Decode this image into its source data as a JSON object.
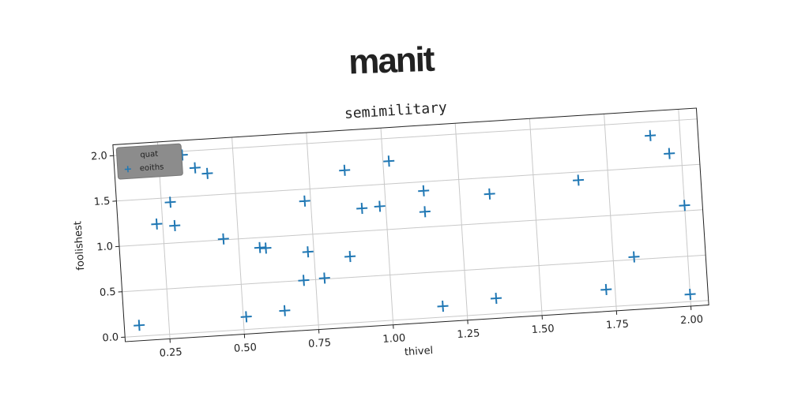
{
  "chart_data": {
    "type": "scatter",
    "title": "manit",
    "subtitle": "semimilitary",
    "x_label": "thivel",
    "y_label": "foolishest",
    "legend_title": "quat",
    "legend_loc": "upper left",
    "grid": true,
    "xlim": [
      0.1,
      2.06
    ],
    "ylim": [
      -0.05,
      2.12
    ],
    "xticks": [
      0.25,
      {
        "value": 0.5,
        "label": "0.50"
      },
      0.75,
      {
        "value": 1.0,
        "label": "1.00"
      },
      1.25,
      {
        "value": 1.5,
        "label": "1.50"
      },
      1.75,
      {
        "value": 2.0,
        "label": "2.00"
      }
    ],
    "yticks": [
      {
        "value": 0.0,
        "label": "0.0"
      },
      0.5,
      {
        "value": 1.0,
        "label": "1.0"
      },
      1.5,
      {
        "value": 2.0,
        "label": "2.0"
      }
    ],
    "series": [
      {
        "name": "eoiths",
        "color": "#1f77b4",
        "marker": "+",
        "x": [
          0.15,
          0.23,
          0.28,
          0.29,
          0.33,
          0.37,
          0.41,
          0.45,
          0.51,
          0.57,
          0.59,
          0.64,
          0.71,
          0.73,
          0.73,
          0.78,
          0.87,
          0.87,
          0.92,
          0.98,
          1.02,
          1.13,
          1.13,
          1.17,
          1.35,
          1.35,
          1.65,
          1.72,
          1.82,
          1.9,
          1.96,
          2.0,
          2.0
        ],
        "values": [
          0.12,
          1.22,
          1.45,
          1.19,
          1.96,
          1.81,
          1.74,
          1.01,
          0.14,
          0.89,
          0.88,
          0.18,
          0.5,
          0.81,
          1.37,
          0.51,
          1.68,
          0.73,
          1.25,
          1.26,
          1.75,
          1.4,
          1.17,
          0.12,
          1.32,
          0.17,
          1.41,
          0.19,
          0.53,
          1.85,
          1.64,
          1.06,
          0.08
        ]
      }
    ]
  }
}
